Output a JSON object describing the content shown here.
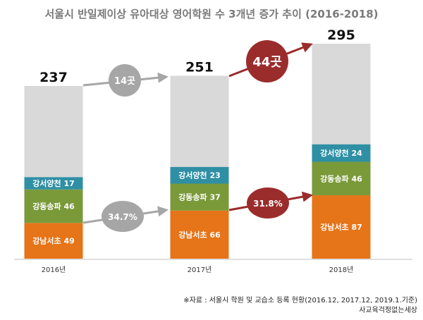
{
  "chart_data": {
    "type": "bar",
    "title": "서울시 반일제이상 유아대상 영어학원 수 3개년 증가 추이 (2016-2018)",
    "categories": [
      "2016년",
      "2017년",
      "2018년"
    ],
    "totals": [
      237,
      251,
      295
    ],
    "series": [
      {
        "name": "강남서초",
        "values": [
          49,
          66,
          87
        ],
        "color": "#e67418",
        "text_color": "#ffffff"
      },
      {
        "name": "강동송파",
        "values": [
          46,
          37,
          46
        ],
        "color": "#7a9a3a",
        "text_color": "#ffffff"
      },
      {
        "name": "강서양천",
        "values": [
          17,
          23,
          24
        ],
        "color": "#2f8fa4",
        "text_color": "#ffffff"
      }
    ],
    "remainder_color": "#d9d9d9",
    "ylim": [
      0,
      295
    ],
    "callouts": [
      {
        "text": "14곳",
        "style": "gray"
      },
      {
        "text": "44곳",
        "style": "red"
      },
      {
        "text": "34.7%",
        "style": "gray"
      },
      {
        "text": "31.8%",
        "style": "red"
      }
    ],
    "callout_colors": {
      "gray": "#a6a6a6",
      "red": "#9b2c2c"
    }
  },
  "source": {
    "line1": "※자료 : 서울시 학원 및 교습소 등록 현황(2016.12, 2017.12, 2019.1.기준)",
    "line2": "사교육걱정없는세상"
  }
}
